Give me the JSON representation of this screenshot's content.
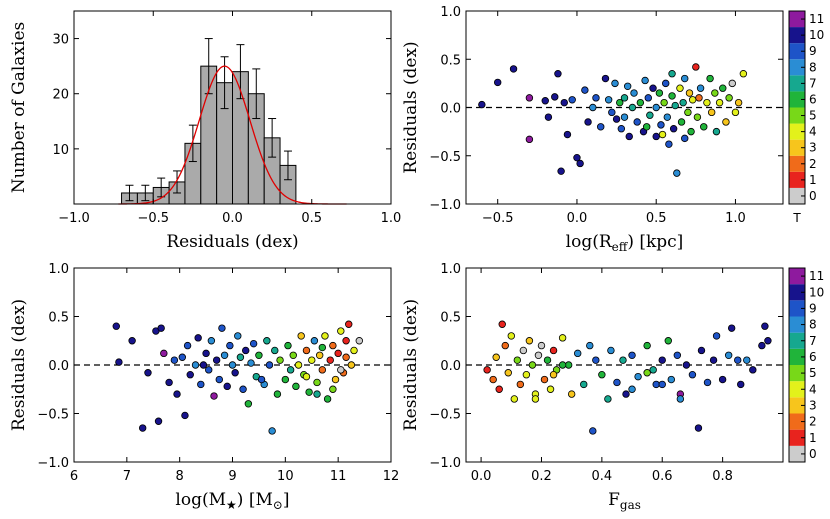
{
  "chart_data": [
    {
      "id": "histogram",
      "type": "bar",
      "xlabel": "Residuals (dex)",
      "ylabel": "Number of Galaxies",
      "xlim": [
        -1.0,
        1.0
      ],
      "ylim": [
        0,
        35
      ],
      "xticks": [
        "−1.0",
        "−0.5",
        "0.0",
        "0.5",
        "1.0"
      ],
      "yticks": [
        "10",
        "20",
        "30"
      ],
      "bin_edges": [
        -0.7,
        -0.6,
        -0.5,
        -0.4,
        -0.3,
        -0.2,
        -0.1,
        0.0,
        0.1,
        0.2,
        0.3,
        0.4
      ],
      "values": [
        2,
        2,
        3,
        4,
        11,
        25,
        22,
        24,
        20,
        12,
        7
      ],
      "errors": [
        1.4,
        1.4,
        1.7,
        2.0,
        3.3,
        5.0,
        4.7,
        4.9,
        4.5,
        3.5,
        2.6
      ],
      "gaussian_fit": {
        "mean": -0.05,
        "sigma": 0.16,
        "peak": 25,
        "color": "#e00000"
      },
      "bar_color": "#aaaaaa"
    },
    {
      "id": "reff",
      "type": "scatter",
      "xlabel": "log(R",
      "xlabel_sub": "eff",
      "xlabel_tail": ") [kpc]",
      "ylabel": "Residuals (dex)",
      "xlim": [
        -0.7,
        1.3
      ],
      "ylim": [
        -1.0,
        1.0
      ],
      "xticks": [
        "−0.5",
        "0.0",
        "0.5",
        "1.0"
      ],
      "xtick_values": [
        -0.5,
        0.0,
        0.5,
        1.0
      ],
      "yticks": [
        "−1.0",
        "−0.5",
        "0.0",
        "0.5",
        "1.0"
      ],
      "points": [
        [
          -0.6,
          0.03,
          10
        ],
        [
          -0.5,
          0.26,
          10
        ],
        [
          -0.4,
          0.4,
          10
        ],
        [
          -0.3,
          0.1,
          11
        ],
        [
          -0.3,
          -0.33,
          11
        ],
        [
          -0.2,
          0.07,
          10
        ],
        [
          -0.18,
          -0.1,
          10
        ],
        [
          -0.14,
          0.11,
          10
        ],
        [
          -0.12,
          0.35,
          10
        ],
        [
          -0.1,
          -0.66,
          10
        ],
        [
          -0.08,
          0.05,
          10
        ],
        [
          -0.06,
          -0.28,
          10
        ],
        [
          -0.03,
          0.08,
          9
        ],
        [
          0.0,
          -0.52,
          10
        ],
        [
          0.02,
          -0.58,
          10
        ],
        [
          0.05,
          0.18,
          9
        ],
        [
          0.07,
          -0.15,
          10
        ],
        [
          0.1,
          0.0,
          8
        ],
        [
          0.12,
          0.1,
          9
        ],
        [
          0.15,
          -0.2,
          9
        ],
        [
          0.18,
          0.3,
          10
        ],
        [
          0.2,
          0.08,
          8
        ],
        [
          0.22,
          -0.05,
          9
        ],
        [
          0.24,
          0.25,
          8
        ],
        [
          0.25,
          -0.12,
          10
        ],
        [
          0.27,
          0.05,
          6
        ],
        [
          0.28,
          -0.22,
          9
        ],
        [
          0.3,
          0.1,
          7
        ],
        [
          0.32,
          0.22,
          8
        ],
        [
          0.33,
          -0.3,
          10
        ],
        [
          0.35,
          0.0,
          7
        ],
        [
          0.36,
          0.15,
          8
        ],
        [
          0.38,
          -0.15,
          9
        ],
        [
          0.4,
          0.05,
          6
        ],
        [
          0.42,
          -0.25,
          10
        ],
        [
          0.43,
          0.28,
          8
        ],
        [
          0.45,
          0.1,
          9
        ],
        [
          0.46,
          -0.08,
          7
        ],
        [
          0.48,
          0.2,
          10
        ],
        [
          0.5,
          0.0,
          8
        ],
        [
          0.5,
          -0.3,
          10
        ],
        [
          0.52,
          0.15,
          6
        ],
        [
          0.53,
          -0.18,
          9
        ],
        [
          0.55,
          0.05,
          5
        ],
        [
          0.56,
          0.25,
          9
        ],
        [
          0.57,
          -0.1,
          8
        ],
        [
          0.58,
          -0.38,
          9
        ],
        [
          0.6,
          0.12,
          6
        ],
        [
          0.61,
          -0.22,
          10
        ],
        [
          0.62,
          0.02,
          7
        ],
        [
          0.63,
          -0.68,
          8
        ],
        [
          0.65,
          0.2,
          4
        ],
        [
          0.66,
          -0.15,
          6
        ],
        [
          0.67,
          0.05,
          7
        ],
        [
          0.68,
          0.3,
          8
        ],
        [
          0.7,
          -0.05,
          5
        ],
        [
          0.71,
          0.15,
          3
        ],
        [
          0.72,
          -0.25,
          6
        ],
        [
          0.73,
          0.08,
          4
        ],
        [
          0.75,
          0.42,
          1
        ],
        [
          0.76,
          -0.1,
          5
        ],
        [
          0.77,
          0.1,
          2
        ],
        [
          0.78,
          0.2,
          8
        ],
        [
          0.8,
          -0.2,
          6
        ],
        [
          0.82,
          0.05,
          4
        ],
        [
          0.84,
          0.3,
          6
        ],
        [
          0.85,
          -0.05,
          3
        ],
        [
          0.87,
          0.15,
          5
        ],
        [
          0.88,
          -0.25,
          7
        ],
        [
          0.9,
          0.05,
          4
        ],
        [
          0.92,
          0.2,
          6
        ],
        [
          0.94,
          -0.15,
          3
        ],
        [
          0.96,
          0.1,
          5
        ],
        [
          0.98,
          0.25,
          0
        ],
        [
          1.0,
          -0.05,
          4
        ],
        [
          1.02,
          0.05,
          3
        ],
        [
          1.05,
          0.35,
          4
        ],
        [
          0.44,
          -0.2,
          6
        ],
        [
          0.3,
          -0.1,
          8
        ],
        [
          0.6,
          0.35,
          7
        ],
        [
          0.54,
          -0.28,
          4
        ],
        [
          0.68,
          -0.32,
          9
        ]
      ],
      "colorbar": {
        "ticks": [
          "0",
          "1",
          "2",
          "3",
          "4",
          "5",
          "6",
          "7",
          "8",
          "9",
          "10",
          "11"
        ],
        "label": "T"
      }
    },
    {
      "id": "mstar",
      "type": "scatter",
      "xlabel": "log(M",
      "xlabel_sub": "★",
      "xlabel_tail": ") [M",
      "xlabel_sub2": "⊙",
      "xlabel_tail2": "]",
      "ylabel": "Residuals (dex)",
      "xlim": [
        6,
        12
      ],
      "ylim": [
        -1.0,
        1.0
      ],
      "xticks": [
        "6",
        "7",
        "8",
        "9",
        "10",
        "11",
        "12"
      ],
      "xtick_values": [
        6,
        7,
        8,
        9,
        10,
        11,
        12
      ],
      "yticks": [
        "−1.0",
        "−0.5",
        "0.0",
        "0.5",
        "1.0"
      ],
      "points": [
        [
          6.8,
          0.4,
          10
        ],
        [
          6.85,
          0.03,
          10
        ],
        [
          7.1,
          0.25,
          10
        ],
        [
          7.3,
          -0.65,
          10
        ],
        [
          7.4,
          -0.08,
          10
        ],
        [
          7.55,
          0.35,
          10
        ],
        [
          7.6,
          -0.58,
          10
        ],
        [
          7.65,
          0.38,
          10
        ],
        [
          7.7,
          0.12,
          11
        ],
        [
          7.8,
          -0.18,
          10
        ],
        [
          7.9,
          0.05,
          9
        ],
        [
          7.95,
          -0.3,
          10
        ],
        [
          8.05,
          0.08,
          9
        ],
        [
          8.1,
          -0.52,
          10
        ],
        [
          8.15,
          0.2,
          9
        ],
        [
          8.2,
          -0.1,
          10
        ],
        [
          8.3,
          0.0,
          8
        ],
        [
          8.35,
          0.28,
          10
        ],
        [
          8.4,
          -0.2,
          9
        ],
        [
          8.5,
          0.12,
          10
        ],
        [
          8.55,
          -0.05,
          9
        ],
        [
          8.6,
          0.25,
          8
        ],
        [
          8.65,
          -0.32,
          11
        ],
        [
          8.7,
          0.05,
          10
        ],
        [
          8.75,
          -0.15,
          9
        ],
        [
          8.8,
          0.38,
          9
        ],
        [
          8.85,
          0.1,
          8
        ],
        [
          8.9,
          -0.22,
          10
        ],
        [
          8.95,
          0.2,
          9
        ],
        [
          9.0,
          0.0,
          8
        ],
        [
          9.05,
          -0.08,
          10
        ],
        [
          9.1,
          0.3,
          8
        ],
        [
          9.15,
          0.08,
          7
        ],
        [
          9.2,
          -0.25,
          9
        ],
        [
          9.25,
          0.15,
          10
        ],
        [
          9.3,
          -0.4,
          6
        ],
        [
          9.35,
          0.02,
          8
        ],
        [
          9.4,
          0.22,
          9
        ],
        [
          9.45,
          -0.12,
          7
        ],
        [
          9.5,
          0.1,
          6
        ],
        [
          9.6,
          -0.2,
          8
        ],
        [
          9.65,
          0.25,
          7
        ],
        [
          9.7,
          0.0,
          9
        ],
        [
          9.75,
          -0.68,
          8
        ],
        [
          9.8,
          0.15,
          7
        ],
        [
          9.85,
          -0.3,
          6
        ],
        [
          9.9,
          0.05,
          5
        ],
        [
          10.0,
          -0.15,
          6
        ],
        [
          10.05,
          0.2,
          6
        ],
        [
          10.1,
          -0.05,
          7
        ],
        [
          10.15,
          0.1,
          5
        ],
        [
          10.2,
          -0.22,
          6
        ],
        [
          10.25,
          0.0,
          4
        ],
        [
          10.3,
          0.3,
          3
        ],
        [
          10.35,
          -0.1,
          5
        ],
        [
          10.4,
          0.15,
          2
        ],
        [
          10.45,
          -0.28,
          6
        ],
        [
          10.5,
          0.05,
          4
        ],
        [
          10.55,
          0.25,
          8
        ],
        [
          10.6,
          -0.18,
          5
        ],
        [
          10.65,
          0.1,
          3
        ],
        [
          10.7,
          -0.05,
          2
        ],
        [
          10.75,
          0.3,
          4
        ],
        [
          10.8,
          -0.35,
          6
        ],
        [
          10.85,
          0.05,
          1
        ],
        [
          10.9,
          0.2,
          2
        ],
        [
          10.95,
          -0.15,
          3
        ],
        [
          11.0,
          0.12,
          1
        ],
        [
          11.05,
          0.35,
          4
        ],
        [
          11.1,
          -0.08,
          2
        ],
        [
          11.15,
          0.25,
          1
        ],
        [
          11.2,
          0.42,
          1
        ],
        [
          11.25,
          0.0,
          3
        ],
        [
          11.3,
          0.15,
          4
        ],
        [
          11.4,
          0.25,
          0
        ],
        [
          10.6,
          -0.3,
          7
        ],
        [
          10.7,
          0.18,
          6
        ],
        [
          10.9,
          -0.25,
          5
        ],
        [
          11.05,
          -0.05,
          0
        ],
        [
          11.15,
          0.08,
          2
        ],
        [
          10.4,
          -0.12,
          4
        ],
        [
          9.55,
          -0.15,
          9
        ],
        [
          8.45,
          0.0,
          10
        ]
      ]
    },
    {
      "id": "fgas",
      "type": "scatter",
      "xlabel": "F",
      "xlabel_sub": "gas",
      "ylabel": "Residuals (dex)",
      "xlim": [
        -0.05,
        1.0
      ],
      "ylim": [
        -1.0,
        1.0
      ],
      "xticks": [
        "0.0",
        "0.2",
        "0.4",
        "0.6",
        "0.8"
      ],
      "xtick_values": [
        0.0,
        0.2,
        0.4,
        0.6,
        0.8
      ],
      "yticks": [
        "−1.0",
        "−0.5",
        "0.0",
        "0.5",
        "1.0"
      ],
      "points": [
        [
          0.02,
          -0.05,
          1
        ],
        [
          0.04,
          -0.15,
          2
        ],
        [
          0.05,
          0.08,
          3
        ],
        [
          0.06,
          -0.25,
          1
        ],
        [
          0.07,
          0.42,
          1
        ],
        [
          0.08,
          0.2,
          2
        ],
        [
          0.09,
          -0.08,
          3
        ],
        [
          0.1,
          0.3,
          4
        ],
        [
          0.11,
          -0.35,
          4
        ],
        [
          0.12,
          0.05,
          5
        ],
        [
          0.13,
          -0.2,
          2
        ],
        [
          0.14,
          0.15,
          0
        ],
        [
          0.15,
          -0.1,
          4
        ],
        [
          0.16,
          0.25,
          3
        ],
        [
          0.17,
          0.0,
          5
        ],
        [
          0.18,
          -0.3,
          4
        ],
        [
          0.19,
          0.1,
          0
        ],
        [
          0.2,
          0.2,
          0
        ],
        [
          0.21,
          -0.15,
          2
        ],
        [
          0.22,
          0.05,
          6
        ],
        [
          0.23,
          -0.25,
          4
        ],
        [
          0.24,
          0.15,
          1
        ],
        [
          0.25,
          -0.05,
          5
        ],
        [
          0.27,
          0.28,
          4
        ],
        [
          0.29,
          0.0,
          6
        ],
        [
          0.3,
          -0.3,
          3
        ],
        [
          0.32,
          0.12,
          8
        ],
        [
          0.34,
          -0.2,
          7
        ],
        [
          0.36,
          0.2,
          8
        ],
        [
          0.37,
          -0.68,
          9
        ],
        [
          0.38,
          0.05,
          9
        ],
        [
          0.4,
          -0.1,
          6
        ],
        [
          0.42,
          -0.35,
          7
        ],
        [
          0.43,
          0.15,
          8
        ],
        [
          0.45,
          -0.18,
          9
        ],
        [
          0.47,
          0.05,
          7
        ],
        [
          0.48,
          -0.3,
          10
        ],
        [
          0.5,
          0.1,
          9
        ],
        [
          0.52,
          -0.12,
          8
        ],
        [
          0.55,
          0.2,
          6
        ],
        [
          0.57,
          -0.05,
          7
        ],
        [
          0.58,
          -0.2,
          9
        ],
        [
          0.6,
          0.05,
          10
        ],
        [
          0.62,
          0.25,
          6
        ],
        [
          0.63,
          -0.15,
          8
        ],
        [
          0.65,
          0.1,
          9
        ],
        [
          0.66,
          -0.3,
          11
        ],
        [
          0.68,
          0.0,
          10
        ],
        [
          0.7,
          -0.1,
          9
        ],
        [
          0.72,
          -0.65,
          10
        ],
        [
          0.73,
          0.15,
          10
        ],
        [
          0.75,
          -0.18,
          9
        ],
        [
          0.77,
          0.05,
          10
        ],
        [
          0.78,
          0.3,
          9
        ],
        [
          0.8,
          -0.15,
          10
        ],
        [
          0.82,
          0.1,
          8
        ],
        [
          0.83,
          0.38,
          10
        ],
        [
          0.85,
          0.05,
          9
        ],
        [
          0.86,
          -0.2,
          10
        ],
        [
          0.88,
          0.05,
          8
        ],
        [
          0.9,
          -0.05,
          10
        ],
        [
          0.93,
          0.2,
          10
        ],
        [
          0.94,
          0.4,
          10
        ],
        [
          0.95,
          0.25,
          10
        ],
        [
          0.18,
          -0.35,
          4
        ],
        [
          0.24,
          -0.1,
          3
        ],
        [
          0.27,
          0.0,
          6
        ],
        [
          0.5,
          -0.25,
          8
        ],
        [
          0.6,
          -0.2,
          9
        ],
        [
          0.66,
          -0.35,
          8
        ],
        [
          0.55,
          -0.08,
          5
        ]
      ],
      "colorbar": {
        "ticks": [
          "0",
          "1",
          "2",
          "3",
          "4",
          "5",
          "6",
          "7",
          "8",
          "9",
          "10",
          "11"
        ],
        "label": ""
      }
    }
  ],
  "colormap": [
    "#cccccc",
    "#e8231e",
    "#f06b1a",
    "#f7c51c",
    "#e3f11b",
    "#78d818",
    "#20b43a",
    "#16a88f",
    "#2a8dd4",
    "#1e54c8",
    "#17138c",
    "#8e1a9e"
  ]
}
